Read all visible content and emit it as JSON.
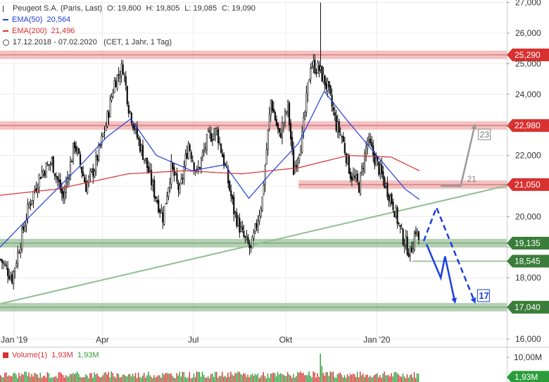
{
  "header": {
    "instrument": "Peugeot S.A. (Paris, Last)",
    "ohlc": {
      "o_label": "O:",
      "o": "19,800",
      "h_label": "H:",
      "h": "19,805",
      "l_label": "L:",
      "l": "19,085",
      "c_label": "C:",
      "c": "19,090"
    },
    "ema50": {
      "label": "EMA(50)",
      "value": "20,564",
      "color": "#1f3fd6"
    },
    "ema200": {
      "label": "EMA(200)",
      "value": "21,496",
      "color": "#d93030"
    },
    "range": {
      "text": "17.12.2018 - 07.02.2020",
      "settings": "(CET, 1 Jahr, 1 Tag)"
    }
  },
  "volume_legend": {
    "label": "Volume(1)",
    "v1": "1,93M",
    "v2": "1,93M",
    "color": "#d93030",
    "color2": "#2a9d3a"
  },
  "chart_data": {
    "type": "candlestick",
    "ylim": [
      16,
      27.2
    ],
    "yticks": [
      16,
      17,
      18,
      19,
      20,
      21,
      22,
      23,
      24,
      25,
      26,
      27
    ],
    "ytick_labels": [
      "16,000",
      "17,000",
      "18,000",
      "19,000",
      "20,000",
      "21,000",
      "22,000",
      "23,000",
      "24,000",
      "25,000",
      "26,000",
      "27,000"
    ],
    "xticks": [
      {
        "label": "Jan '19",
        "index": 10
      },
      {
        "label": "Apr",
        "index": 72
      },
      {
        "label": "Jul",
        "index": 136
      },
      {
        "label": "Okt",
        "index": 201
      },
      {
        "label": "Jan '20",
        "index": 265
      }
    ],
    "n_bars": 295,
    "price_path": [
      [
        0,
        18.6
      ],
      [
        8,
        18.0
      ],
      [
        14,
        19.2
      ],
      [
        20,
        20.4
      ],
      [
        28,
        21.4
      ],
      [
        36,
        21.8
      ],
      [
        44,
        20.6
      ],
      [
        52,
        22.4
      ],
      [
        60,
        21.0
      ],
      [
        66,
        21.6
      ],
      [
        74,
        23.0
      ],
      [
        80,
        24.4
      ],
      [
        86,
        24.9
      ],
      [
        90,
        23.6
      ],
      [
        96,
        22.6
      ],
      [
        102,
        21.8
      ],
      [
        108,
        20.8
      ],
      [
        114,
        20.0
      ],
      [
        120,
        21.6
      ],
      [
        126,
        20.8
      ],
      [
        132,
        22.4
      ],
      [
        138,
        21.4
      ],
      [
        146,
        22.6
      ],
      [
        152,
        22.8
      ],
      [
        158,
        21.6
      ],
      [
        164,
        20.2
      ],
      [
        170,
        19.4
      ],
      [
        176,
        18.9
      ],
      [
        184,
        20.6
      ],
      [
        190,
        23.8
      ],
      [
        196,
        22.6
      ],
      [
        202,
        23.6
      ],
      [
        206,
        21.5
      ],
      [
        212,
        22.6
      ],
      [
        218,
        25.0
      ],
      [
        224,
        24.8
      ],
      [
        230,
        24.2
      ],
      [
        236,
        23.0
      ],
      [
        240,
        22.6
      ],
      [
        246,
        21.4
      ],
      [
        252,
        21.0
      ],
      [
        258,
        22.5
      ],
      [
        264,
        21.8
      ],
      [
        270,
        21.1
      ],
      [
        276,
        20.4
      ],
      [
        282,
        19.4
      ],
      [
        288,
        18.8
      ],
      [
        292,
        19.6
      ],
      [
        295,
        19.09
      ]
    ],
    "spike": {
      "index": 225,
      "high": 27.0
    },
    "ema50": [
      [
        0,
        19.0
      ],
      [
        25,
        20.2
      ],
      [
        55,
        21.6
      ],
      [
        75,
        22.6
      ],
      [
        92,
        23.2
      ],
      [
        110,
        22.0
      ],
      [
        135,
        21.5
      ],
      [
        158,
        21.7
      ],
      [
        175,
        20.6
      ],
      [
        190,
        21.4
      ],
      [
        210,
        22.4
      ],
      [
        228,
        24.1
      ],
      [
        245,
        23.1
      ],
      [
        265,
        22.0
      ],
      [
        285,
        20.9
      ],
      [
        295,
        20.56
      ]
    ],
    "ema200": [
      [
        0,
        20.7
      ],
      [
        40,
        20.9
      ],
      [
        90,
        21.4
      ],
      [
        130,
        21.5
      ],
      [
        170,
        21.4
      ],
      [
        210,
        21.6
      ],
      [
        245,
        22.0
      ],
      [
        275,
        21.95
      ],
      [
        295,
        21.5
      ]
    ],
    "levels": [
      {
        "value": 25.29,
        "label": "25,290",
        "style": "red_band",
        "start": 0
      },
      {
        "value": 22.98,
        "label": "22,980",
        "style": "red_band",
        "start": 0
      },
      {
        "value": 21.05,
        "label": "21,050",
        "style": "red_band",
        "start": 210
      },
      {
        "value": 19.135,
        "label": "19,135",
        "style": "green_band",
        "start": 0
      },
      {
        "value": 18.545,
        "label": "18,545",
        "style": "green_line",
        "start": 290
      },
      {
        "value": 17.04,
        "label": "17,040",
        "style": "green_band",
        "start": 0
      }
    ],
    "trendline": {
      "from": [
        0,
        17.15
      ],
      "to": [
        360,
        21.05
      ],
      "color": "#8fbf8f"
    },
    "scenario_up": {
      "points": [
        [
          310,
          21.0
        ],
        [
          324,
          21.0
        ],
        [
          334,
          23.0
        ]
      ],
      "label": "21",
      "box": "23"
    },
    "scenario_down": {
      "points": [
        [
          300,
          19.1
        ],
        [
          310,
          18.0
        ],
        [
          313,
          18.7
        ],
        [
          320,
          17.2
        ]
      ],
      "label": "17"
    },
    "scenario_dashed": {
      "points": [
        [
          298,
          19.2
        ],
        [
          307,
          20.3
        ],
        [
          334,
          17.2
        ]
      ]
    },
    "volume": {
      "ylim": [
        0,
        12
      ],
      "ytick_labels": [
        "10,00M"
      ],
      "last_label": "1,93M"
    }
  }
}
